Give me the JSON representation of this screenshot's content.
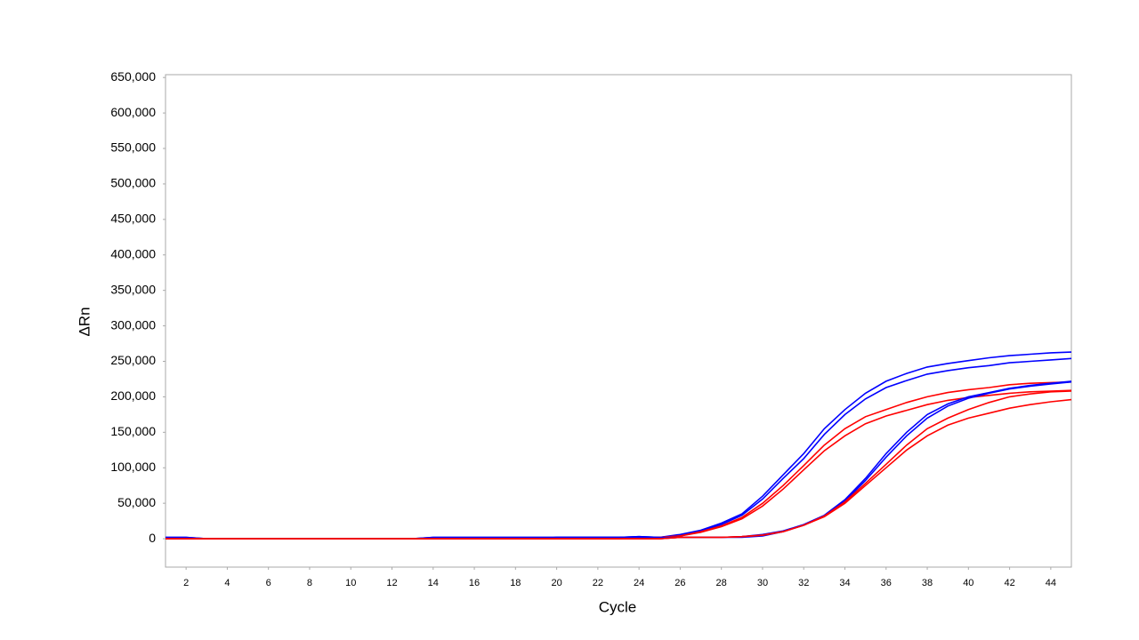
{
  "chart_data": {
    "type": "line",
    "x_label": "Cycle",
    "y_label": "ΔRn",
    "x": [
      1,
      2,
      3,
      4,
      5,
      6,
      7,
      8,
      9,
      10,
      11,
      12,
      13,
      14,
      15,
      16,
      17,
      18,
      19,
      20,
      21,
      22,
      23,
      24,
      25,
      26,
      27,
      28,
      29,
      30,
      31,
      32,
      33,
      34,
      35,
      36,
      37,
      38,
      39,
      40,
      41,
      42,
      43,
      44,
      45
    ],
    "xlim": [
      1,
      45
    ],
    "xticks": [
      2,
      4,
      6,
      8,
      10,
      12,
      14,
      16,
      18,
      20,
      22,
      24,
      26,
      28,
      30,
      32,
      34,
      36,
      38,
      40,
      42,
      44
    ],
    "ylim": [
      -40000,
      654000
    ],
    "yticks": [
      0,
      {
        "value": 50000,
        "label": "50,000"
      },
      {
        "value": 100000,
        "label": "100,000"
      },
      {
        "value": 150000,
        "label": "150,000"
      },
      {
        "value": 200000,
        "label": "200,000"
      },
      {
        "value": 250000,
        "label": "250,000"
      },
      {
        "value": 300000,
        "label": "300,000"
      },
      {
        "value": 350000,
        "label": "350,000"
      },
      {
        "value": 400000,
        "label": "400,000"
      },
      {
        "value": 450000,
        "label": "450,000"
      },
      {
        "value": 500000,
        "label": "500,000"
      },
      {
        "value": 550000,
        "label": "550,000"
      },
      {
        "value": 600000,
        "label": "600,000"
      },
      {
        "value": 650000,
        "label": "650,000"
      }
    ],
    "grid": false,
    "series": [
      {
        "color": "#0000ff",
        "values": [
          2000,
          2000,
          0,
          0,
          0,
          0,
          0,
          0,
          0,
          0,
          0,
          0,
          0,
          0,
          0,
          0,
          0,
          0,
          0,
          2000,
          2000,
          2000,
          2000,
          2000,
          2000,
          6000,
          12000,
          22000,
          35000,
          60000,
          90000,
          120000,
          155000,
          182000,
          205000,
          222000,
          233000,
          242000,
          247000,
          251000,
          255000,
          258000,
          260000,
          262000,
          263000
        ]
      },
      {
        "color": "#0000ff",
        "values": [
          0,
          0,
          0,
          0,
          0,
          0,
          0,
          0,
          0,
          0,
          0,
          0,
          0,
          2000,
          2000,
          2000,
          2000,
          2000,
          2000,
          2000,
          2000,
          2000,
          2000,
          3000,
          2000,
          5000,
          11000,
          20000,
          33000,
          56000,
          85000,
          113000,
          147000,
          175000,
          197000,
          213000,
          223000,
          232000,
          237000,
          241000,
          244000,
          248000,
          250000,
          252000,
          254000
        ]
      },
      {
        "color": "#ff0000",
        "values": [
          0,
          0,
          0,
          0,
          0,
          0,
          0,
          0,
          0,
          0,
          0,
          0,
          0,
          0,
          0,
          0,
          0,
          0,
          0,
          0,
          0,
          0,
          0,
          2000,
          2000,
          4000,
          10000,
          18000,
          30000,
          50000,
          75000,
          103000,
          132000,
          155000,
          172000,
          182000,
          192000,
          200000,
          206000,
          210000,
          213000,
          217000,
          219000,
          220000,
          221000
        ]
      },
      {
        "color": "#ff0000",
        "values": [
          0,
          0,
          0,
          0,
          0,
          0,
          0,
          0,
          0,
          0,
          0,
          0,
          0,
          0,
          0,
          0,
          0,
          0,
          0,
          0,
          0,
          0,
          0,
          2000,
          2000,
          4000,
          9000,
          17000,
          28000,
          46000,
          70000,
          97000,
          124000,
          145000,
          162000,
          173000,
          181000,
          189000,
          195000,
          199000,
          202000,
          205000,
          207000,
          208000,
          209000
        ]
      },
      {
        "color": "#0000ff",
        "values": [
          2000,
          2000,
          0,
          0,
          0,
          0,
          0,
          0,
          0,
          0,
          0,
          0,
          0,
          2000,
          2000,
          2000,
          2000,
          2000,
          2000,
          2000,
          2000,
          2000,
          2000,
          3000,
          2000,
          2000,
          2000,
          2000,
          3000,
          6000,
          11000,
          20000,
          33000,
          55000,
          85000,
          120000,
          150000,
          175000,
          190000,
          200000,
          206000,
          212000,
          216000,
          219000,
          222000
        ]
      },
      {
        "color": "#0000ff",
        "values": [
          0,
          0,
          0,
          0,
          0,
          0,
          0,
          0,
          0,
          0,
          0,
          0,
          0,
          0,
          0,
          0,
          0,
          0,
          0,
          2000,
          2000,
          2000,
          2000,
          2000,
          0,
          2000,
          2000,
          2000,
          2000,
          4000,
          10000,
          19000,
          32000,
          53000,
          82000,
          115000,
          145000,
          170000,
          187000,
          198000,
          205000,
          211000,
          215000,
          218000,
          221000
        ]
      },
      {
        "color": "#ff0000",
        "values": [
          0,
          0,
          0,
          0,
          0,
          0,
          0,
          0,
          0,
          0,
          0,
          0,
          0,
          0,
          0,
          0,
          0,
          0,
          0,
          0,
          0,
          0,
          0,
          0,
          0,
          2000,
          2000,
          2000,
          3000,
          5000,
          10000,
          19000,
          32000,
          52000,
          78000,
          105000,
          132000,
          155000,
          170000,
          182000,
          192000,
          200000,
          204000,
          207000,
          208000
        ]
      },
      {
        "color": "#ff0000",
        "values": [
          0,
          0,
          0,
          0,
          0,
          0,
          0,
          0,
          0,
          0,
          0,
          0,
          0,
          0,
          0,
          0,
          0,
          0,
          0,
          0,
          0,
          0,
          0,
          0,
          0,
          2000,
          2000,
          2000,
          3000,
          5000,
          10000,
          19000,
          31000,
          50000,
          75000,
          100000,
          125000,
          145000,
          160000,
          170000,
          177000,
          184000,
          189000,
          193000,
          196000
        ]
      }
    ]
  }
}
